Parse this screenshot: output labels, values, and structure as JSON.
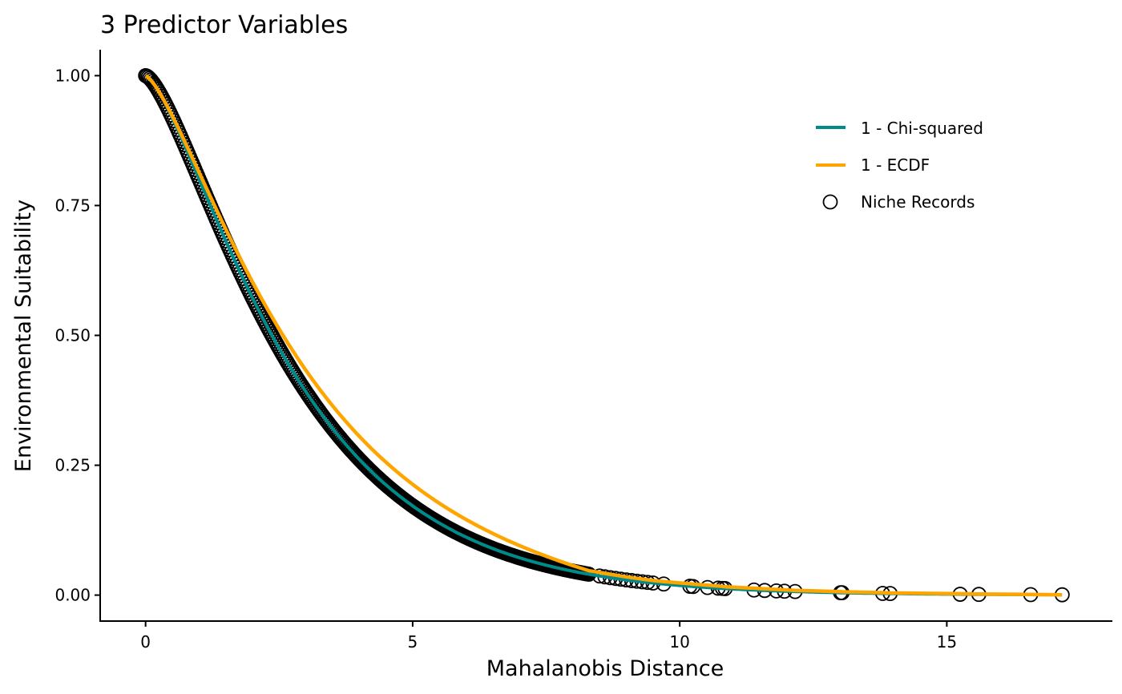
{
  "chart_data": {
    "type": "scatter",
    "title": "3 Predictor Variables",
    "xlabel": "Mahalanobis Distance",
    "ylabel": "Environmental Suitability",
    "xlim": [
      -0.85,
      18.1
    ],
    "ylim": [
      -0.05,
      1.05
    ],
    "x_ticks": [
      0,
      5,
      10,
      15
    ],
    "x_tick_labels": [
      "0",
      "5",
      "10",
      "15"
    ],
    "y_ticks": [
      0,
      0.25,
      0.5,
      0.75,
      1.0
    ],
    "y_tick_labels": [
      "0.00",
      "0.25",
      "0.50",
      "0.75",
      "1.00"
    ],
    "grid": false,
    "legend_position": "top-right",
    "degrees_of_freedom": 3,
    "series": [
      {
        "name": "1 - Chi-squared",
        "kind": "line",
        "color": "#008B8B"
      },
      {
        "name": "1 - ECDF",
        "kind": "line",
        "color": "#FFA500"
      },
      {
        "name": "Niche Records",
        "kind": "points",
        "color": "#000000"
      }
    ],
    "niche_record_distances_dense_range": [
      0.0,
      8.3
    ],
    "niche_record_distances_dense_step": 0.025,
    "niche_record_distances_extra": [
      8.5,
      8.6,
      8.7,
      8.8,
      8.9,
      9.0,
      9.1,
      9.2,
      9.3,
      9.4,
      9.5,
      9.7,
      10.19,
      10.25,
      10.52,
      10.72,
      10.8,
      10.85,
      11.39,
      11.59,
      11.81,
      11.96,
      12.16,
      13.01,
      13.04,
      13.8,
      13.94,
      15.25,
      15.6,
      16.57,
      17.16
    ]
  }
}
